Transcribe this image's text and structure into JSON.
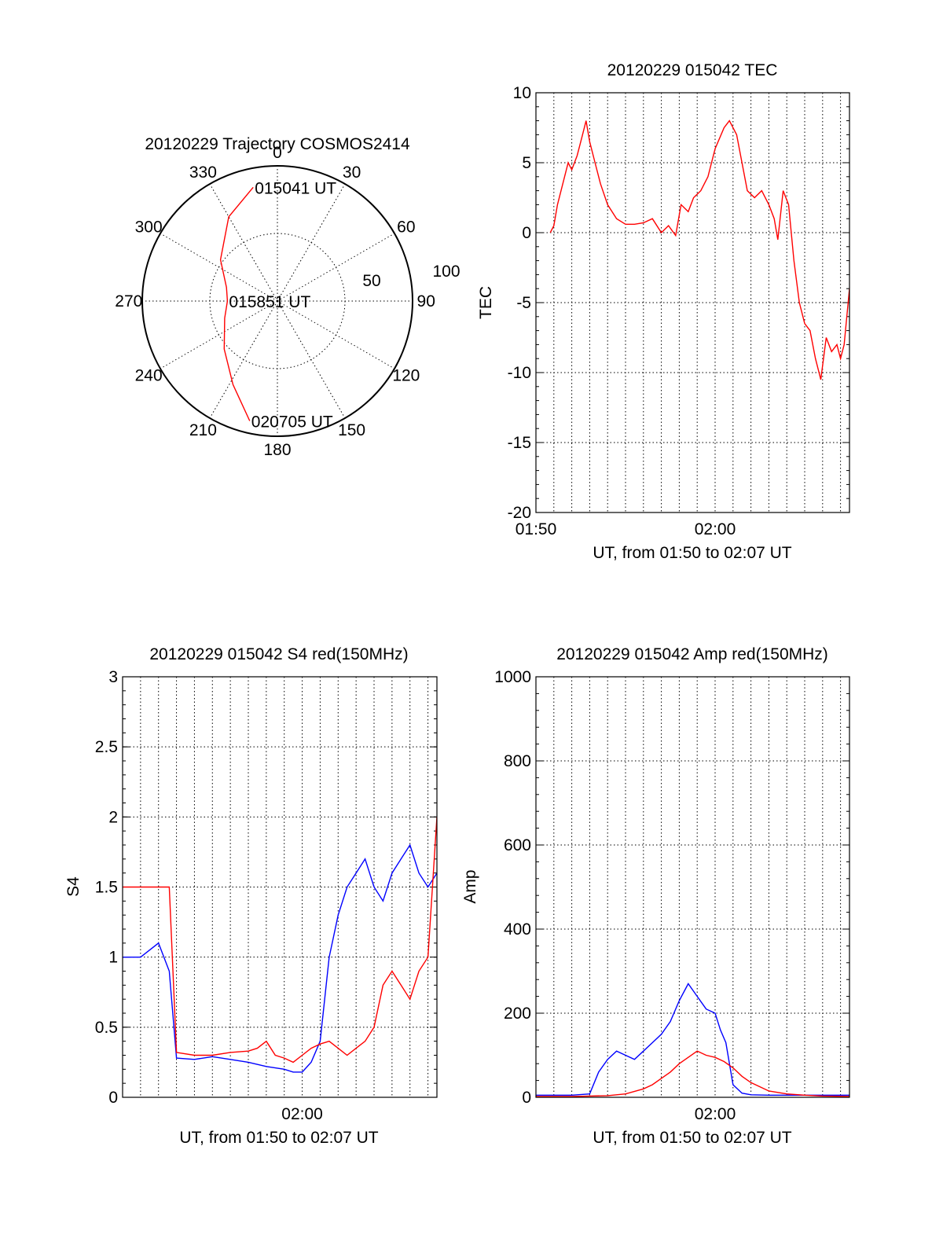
{
  "colors": {
    "red": "#ff0000",
    "blue": "#0000ff",
    "grid": "#000000",
    "background": "#ffffff"
  },
  "chart_data": [
    {
      "type": "polar",
      "title": "20120229 Trajectory COSMOS2414",
      "azimuth_labels": [
        "0",
        "30",
        "60",
        "90",
        "120",
        "150",
        "180",
        "210",
        "240",
        "270",
        "300",
        "330"
      ],
      "radial_labels": [
        "50",
        "100"
      ],
      "radial_max": 100,
      "grid": true,
      "trajectory": [
        {
          "az": 348,
          "r": 86,
          "label": "015041 UT"
        },
        {
          "az": 330,
          "r": 72
        },
        {
          "az": 306,
          "r": 52
        },
        {
          "az": 285,
          "r": 39
        },
        {
          "az": 270,
          "r": 37,
          "label": "015851 UT"
        },
        {
          "az": 252,
          "r": 41
        },
        {
          "az": 228,
          "r": 53
        },
        {
          "az": 208,
          "r": 70
        },
        {
          "az": 193,
          "r": 91,
          "label": "020705 UT"
        }
      ],
      "series_color": "#ff0000"
    },
    {
      "type": "line",
      "title": "20120229 015042 TEC",
      "xlabel": "UT, from 01:50 to 02:07 UT",
      "ylabel": "TEC",
      "xlim": [
        0,
        17.5
      ],
      "ylim": [
        -20,
        10
      ],
      "yticks": [
        "10",
        "5",
        "0",
        "-5",
        "-10",
        "-15",
        "-20"
      ],
      "xtick_labels": [
        {
          "at": 0,
          "label": "01:50"
        },
        {
          "at": 10,
          "label": "02:00"
        }
      ],
      "grid": true,
      "series": [
        {
          "color": "#ff0000",
          "x": [
            0.8,
            1.0,
            1.2,
            1.5,
            1.8,
            2.0,
            2.3,
            2.6,
            2.8,
            3.0,
            3.3,
            3.6,
            4.0,
            4.5,
            5.0,
            5.5,
            6.0,
            6.5,
            7.0,
            7.4,
            7.8,
            8.1,
            8.5,
            8.8,
            9.2,
            9.6,
            10.0,
            10.5,
            10.8,
            11.2,
            11.5,
            11.8,
            12.2,
            12.6,
            13.0,
            13.3,
            13.5,
            13.8,
            14.1,
            14.4,
            14.7,
            15.0,
            15.3,
            15.6,
            15.9,
            16.2,
            16.5,
            16.8,
            17.0,
            17.2,
            17.5
          ],
          "values": [
            0.0,
            0.5,
            2.0,
            3.5,
            5.0,
            4.5,
            5.5,
            7.0,
            8.0,
            6.5,
            5.0,
            3.5,
            2.0,
            1.0,
            0.6,
            0.6,
            0.7,
            1.0,
            0.0,
            0.5,
            -0.2,
            2.0,
            1.5,
            2.5,
            3.0,
            4.0,
            6.0,
            7.5,
            8.0,
            7.0,
            5.0,
            3.0,
            2.5,
            3.0,
            2.0,
            1.0,
            -0.5,
            3.0,
            2.0,
            -2.0,
            -5.0,
            -6.5,
            -7.0,
            -9.0,
            -10.5,
            -7.5,
            -8.5,
            -8.0,
            -9.0,
            -8.0,
            -4.0
          ]
        }
      ]
    },
    {
      "type": "line",
      "title": "20120229 015042 S4 red(150MHz)",
      "xlabel": "UT, from 01:50 to 02:07 UT",
      "ylabel": "S4",
      "xlim": [
        0,
        17.5
      ],
      "ylim": [
        0,
        3
      ],
      "yticks": [
        "3",
        "2.5",
        "2",
        "1.5",
        "1",
        "0.5",
        "0"
      ],
      "xtick_labels": [
        {
          "at": 10,
          "label": "02:00"
        }
      ],
      "grid": true,
      "series": [
        {
          "color": "#0000ff",
          "x": [
            0.0,
            1.0,
            2.0,
            2.6,
            3.0,
            4.0,
            5.0,
            6.0,
            7.0,
            8.0,
            9.0,
            9.5,
            10.0,
            10.5,
            11.0,
            11.5,
            12.0,
            12.5,
            13.0,
            13.5,
            14.0,
            14.5,
            15.0,
            15.5,
            16.0,
            16.5,
            17.0,
            17.5
          ],
          "values": [
            1.0,
            1.0,
            1.1,
            0.9,
            0.28,
            0.27,
            0.29,
            0.27,
            0.25,
            0.22,
            0.2,
            0.18,
            0.18,
            0.25,
            0.4,
            1.0,
            1.3,
            1.5,
            1.6,
            1.7,
            1.5,
            1.4,
            1.6,
            1.7,
            1.8,
            1.6,
            1.5,
            1.6
          ]
        },
        {
          "color": "#ff0000",
          "x": [
            0.0,
            1.0,
            2.0,
            2.6,
            3.0,
            4.0,
            5.0,
            6.0,
            7.0,
            7.5,
            8.0,
            8.5,
            9.0,
            9.5,
            10.0,
            10.5,
            11.0,
            11.5,
            12.0,
            12.5,
            13.0,
            13.5,
            14.0,
            14.5,
            15.0,
            15.5,
            16.0,
            16.5,
            17.0,
            17.5
          ],
          "values": [
            1.5,
            1.5,
            1.5,
            1.5,
            0.32,
            0.3,
            0.3,
            0.32,
            0.33,
            0.35,
            0.4,
            0.3,
            0.28,
            0.25,
            0.3,
            0.35,
            0.38,
            0.4,
            0.35,
            0.3,
            0.35,
            0.4,
            0.5,
            0.8,
            0.9,
            0.8,
            0.7,
            0.9,
            1.0,
            2.0
          ]
        }
      ]
    },
    {
      "type": "line",
      "title": "20120229 015042 Amp red(150MHz)",
      "xlabel": "UT, from 01:50 to 02:07 UT",
      "ylabel": "Amp",
      "xlim": [
        0,
        17.5
      ],
      "ylim": [
        0,
        1000
      ],
      "yticks": [
        "1000",
        "800",
        "600",
        "400",
        "200",
        "0"
      ],
      "xtick_labels": [
        {
          "at": 10,
          "label": "02:00"
        }
      ],
      "grid": true,
      "series": [
        {
          "color": "#0000ff",
          "x": [
            0.0,
            1.0,
            2.0,
            3.0,
            3.5,
            4.0,
            4.5,
            5.0,
            5.5,
            6.0,
            6.5,
            7.0,
            7.5,
            8.0,
            8.5,
            9.0,
            9.5,
            10.0,
            10.3,
            10.6,
            11.0,
            11.5,
            12.0,
            13.0,
            14.0,
            15.0,
            16.0,
            17.5
          ],
          "values": [
            5,
            5,
            5,
            8,
            60,
            90,
            110,
            100,
            90,
            110,
            130,
            150,
            180,
            230,
            270,
            240,
            210,
            200,
            160,
            130,
            30,
            10,
            6,
            5,
            5,
            5,
            5,
            5
          ]
        },
        {
          "color": "#ff0000",
          "x": [
            0.0,
            2.0,
            3.0,
            4.0,
            5.0,
            6.0,
            6.5,
            7.0,
            7.5,
            8.0,
            8.5,
            9.0,
            9.5,
            10.0,
            10.5,
            11.0,
            11.5,
            12.0,
            12.5,
            13.0,
            14.0,
            15.0,
            16.0,
            17.5
          ],
          "values": [
            2,
            2,
            3,
            4,
            8,
            20,
            30,
            45,
            60,
            80,
            95,
            110,
            100,
            95,
            85,
            70,
            50,
            35,
            25,
            15,
            8,
            5,
            3,
            2
          ]
        }
      ]
    }
  ]
}
